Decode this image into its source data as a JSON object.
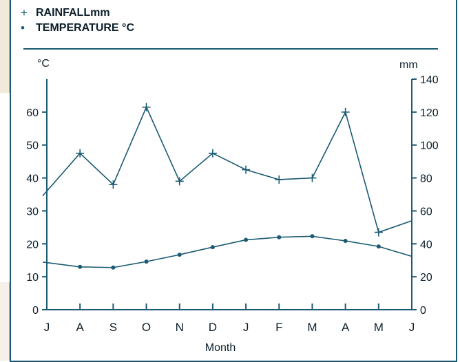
{
  "legend": {
    "rainfall_symbol": "+",
    "rainfall_label": "RAINFALLmm",
    "temperature_symbol": "•",
    "temperature_label": "TEMPERATURE °C"
  },
  "colors": {
    "series": "#1a5a72",
    "frame": "#1a5a72",
    "text": "#0b1e2a",
    "background": "#ffffff"
  },
  "chart_data": {
    "type": "line",
    "xlabel": "Month",
    "categories": [
      "J",
      "A",
      "S",
      "O",
      "N",
      "D",
      "J",
      "F",
      "M",
      "A",
      "M",
      "J"
    ],
    "left_axis": {
      "unit": "°C",
      "ylim": [
        0,
        70
      ],
      "ticks": [
        "0",
        "10",
        "20",
        "30",
        "40",
        "50",
        "60"
      ]
    },
    "right_axis": {
      "unit": "mm",
      "ylim": [
        0,
        140
      ],
      "ticks": [
        "0",
        "20",
        "40",
        "60",
        "80",
        "100",
        "120",
        "140"
      ]
    },
    "series": [
      {
        "name": "RAINFALLmm",
        "axis": "right",
        "marker": "plus",
        "values": [
          72,
          95,
          76,
          123,
          78,
          95,
          85,
          79,
          80,
          120,
          47,
          54
        ]
      },
      {
        "name": "TEMPERATURE °C",
        "axis": "left",
        "marker": "dot",
        "values": [
          14.3,
          13.0,
          12.8,
          14.6,
          16.7,
          19.0,
          21.2,
          22.0,
          22.3,
          20.9,
          19.2,
          16.2
        ]
      }
    ]
  }
}
